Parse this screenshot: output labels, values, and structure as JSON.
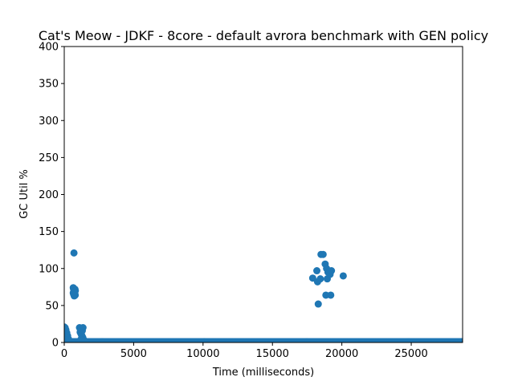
{
  "chart_data": {
    "type": "scatter",
    "title": "Cat's Meow - JDKF - 8core -  default avrora benchmark with GEN policy",
    "xlabel": "Time (milliseconds)",
    "ylabel": "GC Util %",
    "xlim": [
      0,
      28700
    ],
    "ylim": [
      0,
      400
    ],
    "xticks": [
      0,
      5000,
      10000,
      15000,
      20000,
      25000
    ],
    "yticks": [
      0,
      50,
      100,
      150,
      200,
      250,
      300,
      350,
      400
    ],
    "grid": false,
    "marker_color": "#1f77b4",
    "series": [
      {
        "points": [
          [
            0,
            21
          ],
          [
            60,
            20
          ],
          [
            120,
            17
          ],
          [
            180,
            13
          ],
          [
            240,
            9
          ],
          [
            300,
            5
          ],
          [
            0,
            10
          ],
          [
            50,
            8
          ],
          [
            100,
            3
          ],
          [
            700,
            121
          ],
          [
            650,
            74
          ],
          [
            680,
            72
          ],
          [
            700,
            70
          ],
          [
            730,
            68
          ],
          [
            760,
            66
          ],
          [
            790,
            64
          ],
          [
            650,
            67
          ],
          [
            680,
            65
          ],
          [
            720,
            63
          ],
          [
            770,
            72
          ],
          [
            800,
            70
          ],
          [
            1100,
            20
          ],
          [
            1150,
            19
          ],
          [
            1200,
            18
          ],
          [
            1250,
            17
          ],
          [
            1300,
            16
          ],
          [
            1350,
            20
          ],
          [
            1150,
            14
          ],
          [
            1200,
            12
          ],
          [
            1250,
            10
          ],
          [
            1300,
            8
          ],
          [
            1350,
            6
          ],
          [
            1200,
            4
          ],
          [
            1300,
            3
          ],
          [
            1400,
            2
          ],
          [
            1500,
            2
          ],
          [
            17900,
            87
          ],
          [
            18200,
            97
          ],
          [
            18250,
            82
          ],
          [
            18300,
            52
          ],
          [
            18450,
            86
          ],
          [
            18500,
            119
          ],
          [
            18650,
            119
          ],
          [
            18800,
            106
          ],
          [
            18850,
            64
          ],
          [
            18900,
            100
          ],
          [
            18950,
            86
          ],
          [
            19000,
            95
          ],
          [
            19150,
            92
          ],
          [
            19200,
            64
          ],
          [
            19250,
            97
          ],
          [
            20100,
            90
          ]
        ],
        "baseline": {
          "x_start": 0,
          "x_end": 28700,
          "y": 1
        }
      }
    ]
  }
}
